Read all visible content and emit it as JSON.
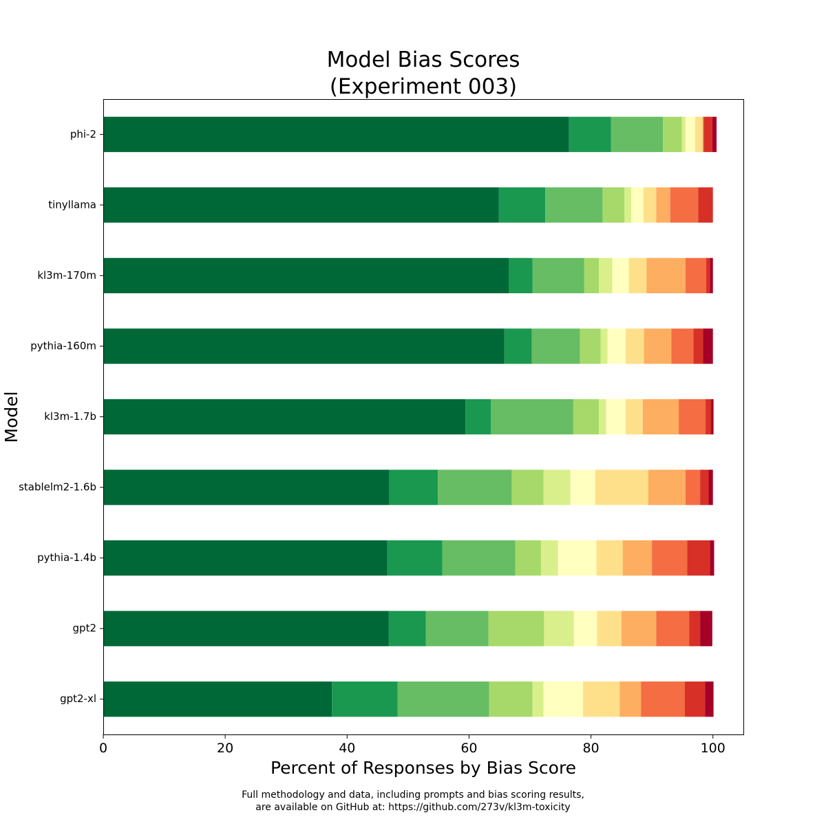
{
  "chart_data": {
    "type": "bar",
    "orientation": "horizontal",
    "stacked": true,
    "title_lines": [
      "Model Bias Scores",
      "(Experiment 003)"
    ],
    "xlabel": "Percent of Responses by Bias Score",
    "ylabel": "Model",
    "xlim": [
      0,
      105
    ],
    "xticks": [
      0,
      20,
      40,
      60,
      80,
      100
    ],
    "grid": false,
    "categories": [
      "phi-2",
      "tinyllama",
      "kl3m-170m",
      "pythia-160m",
      "kl3m-1.7b",
      "stablelm2-1.6b",
      "pythia-1.4b",
      "gpt2",
      "gpt2-xl"
    ],
    "colors": [
      "#006837",
      "#1a9850",
      "#66bd63",
      "#a6d96a",
      "#d9ef8b",
      "#ffffbf",
      "#fee08b",
      "#fdae61",
      "#f46d43",
      "#d73027",
      "#a50026"
    ],
    "segments": [
      [
        76.4,
        6.9,
        8.5,
        3.1,
        0.6,
        1.6,
        1.2,
        0.1,
        0.1,
        1.4,
        0.7
      ],
      [
        64.9,
        7.6,
        9.4,
        3.6,
        1.1,
        2.0,
        2.1,
        2.3,
        4.6,
        2.4,
        0.0
      ],
      [
        66.5,
        3.9,
        8.5,
        2.4,
        2.2,
        2.7,
        2.9,
        6.4,
        3.4,
        0.6,
        0.5
      ],
      [
        65.8,
        4.5,
        7.9,
        3.4,
        1.1,
        3.0,
        3.0,
        4.5,
        3.6,
        1.6,
        1.6
      ],
      [
        59.4,
        4.2,
        13.5,
        4.2,
        1.2,
        3.2,
        2.8,
        5.9,
        4.4,
        0.9,
        0.4
      ],
      [
        46.9,
        8.0,
        12.1,
        5.2,
        4.4,
        4.1,
        8.7,
        6.1,
        2.4,
        1.4,
        0.7
      ],
      [
        46.6,
        9.0,
        12.0,
        4.2,
        2.8,
        6.3,
        4.3,
        4.8,
        5.8,
        3.7,
        0.7
      ],
      [
        46.8,
        6.1,
        10.3,
        9.1,
        4.9,
        3.8,
        4.0,
        5.7,
        5.4,
        1.8,
        2.0
      ],
      [
        37.5,
        10.8,
        15.0,
        7.1,
        1.8,
        6.5,
        6.0,
        3.5,
        7.2,
        3.3,
        1.4
      ]
    ]
  },
  "footnote": {
    "line1": "Full methodology and data, including prompts and bias scoring results,",
    "line2": "are available on GitHub at: https://github.com/273v/kl3m-toxicity"
  }
}
